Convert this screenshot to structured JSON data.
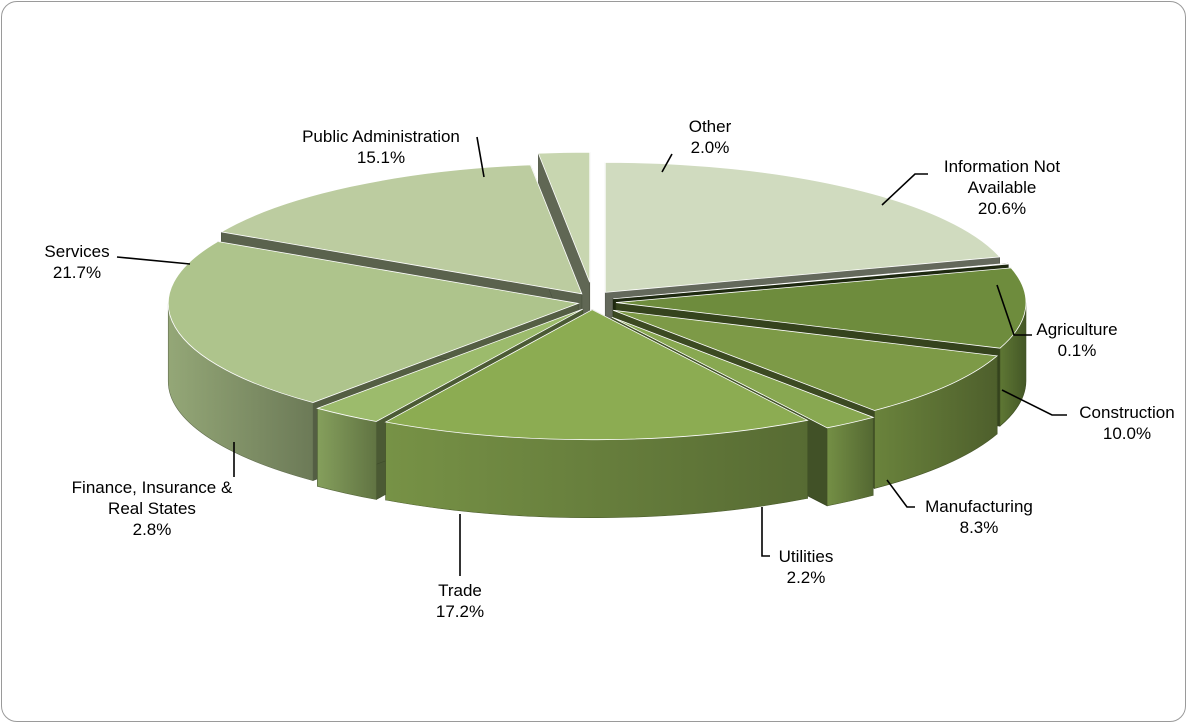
{
  "chart_data": {
    "type": "pie",
    "style": "3d-exploded",
    "slices": [
      {
        "label": "Information Not Available",
        "value": 20.6,
        "value_label": "20.6%",
        "color": "#d0dbbf"
      },
      {
        "label": "Agriculture",
        "value": 0.1,
        "value_label": "0.1%",
        "color": "#3e5522"
      },
      {
        "label": "Construction",
        "value": 10.0,
        "value_label": "10.0%",
        "color": "#6e8c3d"
      },
      {
        "label": "Manufacturing",
        "value": 8.3,
        "value_label": "8.3%",
        "color": "#7d9a47"
      },
      {
        "label": "Utilities",
        "value": 2.2,
        "value_label": "2.2%",
        "color": "#88a851"
      },
      {
        "label": "Trade",
        "value": 17.2,
        "value_label": "17.2%",
        "color": "#8cac52"
      },
      {
        "label": "Finance, Insurance & Real States",
        "value": 2.8,
        "value_label": "2.8%",
        "color": "#9cbb6c"
      },
      {
        "label": "Services",
        "value": 21.7,
        "value_label": "21.7%",
        "color": "#aec48c"
      },
      {
        "label": "Public Administration",
        "value": 15.1,
        "value_label": "15.1%",
        "color": "#bccca0"
      },
      {
        "label": "Other",
        "value": 2.0,
        "value_label": "2.0%",
        "color": "#c8d6b0"
      }
    ],
    "legend": "none"
  }
}
